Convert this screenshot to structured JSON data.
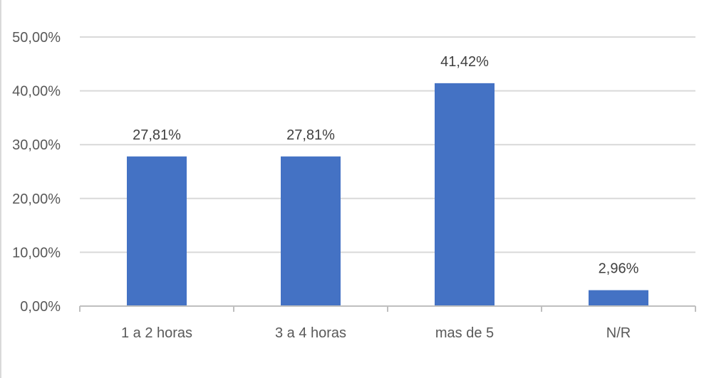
{
  "chart_data": {
    "type": "bar",
    "categories": [
      "1 a 2 horas",
      "3 a 4 horas",
      "mas de 5",
      "N/R"
    ],
    "values": [
      27.81,
      27.81,
      41.42,
      2.96
    ],
    "data_labels": [
      "27,81%",
      "27,81%",
      "41,42%",
      "2,96%"
    ],
    "y_tick_labels": [
      "0,00%",
      "10,00%",
      "20,00%",
      "30,00%",
      "40,00%",
      "50,00%"
    ],
    "y_ticks": [
      0,
      10,
      20,
      30,
      40,
      50
    ],
    "ylim": [
      0,
      50
    ],
    "grid": true,
    "legend": "none",
    "bar_color": "#4472C4",
    "grid_color": "#d9d9d9",
    "axis_color": "#bfbfbf"
  }
}
